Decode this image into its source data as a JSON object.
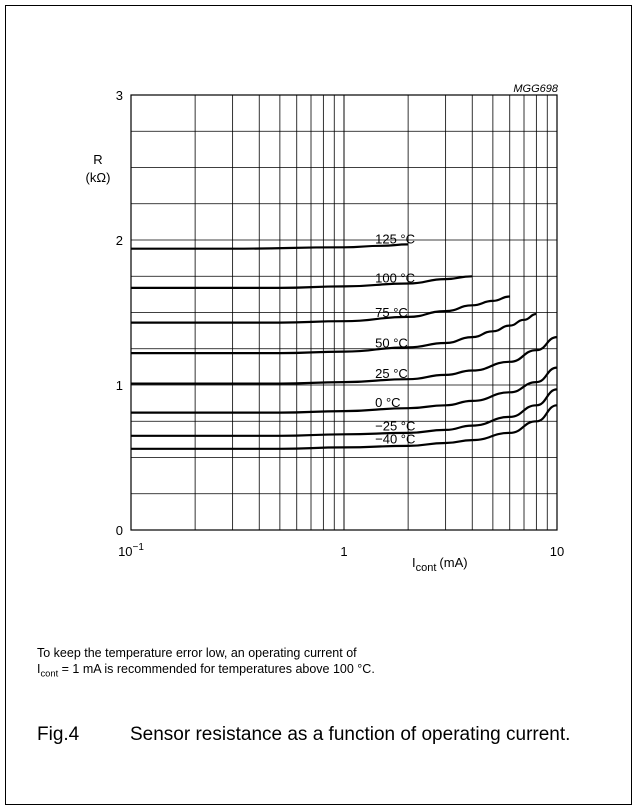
{
  "chart_data": {
    "type": "line",
    "code": "MGG698",
    "x_scale": "log",
    "xlim": [
      0.1,
      10
    ],
    "ylim": [
      0,
      3
    ],
    "x_ticks": [
      {
        "value": 0.1,
        "label": "10−1"
      },
      {
        "value": 1,
        "label": "1"
      },
      {
        "value": 10,
        "label": "10"
      }
    ],
    "y_ticks": [
      {
        "value": 0,
        "label": "0"
      },
      {
        "value": 1,
        "label": "1"
      },
      {
        "value": 2,
        "label": "2"
      },
      {
        "value": 3,
        "label": "3"
      }
    ],
    "ylabel": {
      "symbol": "R",
      "unit": "(kΩ)"
    },
    "xlabel": {
      "symbol": "I",
      "sub": "cont",
      "unit": "(mA)"
    },
    "grid": true,
    "series": [
      {
        "name": "125 °C",
        "x": [
          0.1,
          0.3,
          1,
          1.5,
          2
        ],
        "y": [
          1.94,
          1.94,
          1.95,
          1.96,
          1.97
        ]
      },
      {
        "name": "100 °C",
        "x": [
          0.1,
          0.5,
          1,
          2,
          3,
          4
        ],
        "y": [
          1.67,
          1.67,
          1.68,
          1.7,
          1.73,
          1.75
        ]
      },
      {
        "name": "75 °C",
        "x": [
          0.1,
          0.5,
          1,
          2,
          3,
          4,
          5,
          6
        ],
        "y": [
          1.43,
          1.43,
          1.44,
          1.47,
          1.51,
          1.55,
          1.58,
          1.61
        ]
      },
      {
        "name": "50 °C",
        "x": [
          0.1,
          0.5,
          1,
          2,
          3,
          4,
          5,
          6,
          7,
          8
        ],
        "y": [
          1.22,
          1.22,
          1.23,
          1.26,
          1.29,
          1.33,
          1.37,
          1.41,
          1.45,
          1.49
        ]
      },
      {
        "name": "25 °C",
        "x": [
          0.1,
          0.5,
          1,
          2,
          3,
          4,
          6,
          8,
          10
        ],
        "y": [
          1.01,
          1.01,
          1.02,
          1.04,
          1.07,
          1.1,
          1.16,
          1.24,
          1.33
        ]
      },
      {
        "name": "0 °C",
        "x": [
          0.1,
          0.5,
          1,
          2,
          3,
          4,
          6,
          8,
          10
        ],
        "y": [
          0.81,
          0.81,
          0.82,
          0.84,
          0.86,
          0.89,
          0.95,
          1.02,
          1.12
        ]
      },
      {
        "name": "−25 °C",
        "x": [
          0.1,
          0.5,
          1,
          2,
          3,
          4,
          6,
          8,
          10
        ],
        "y": [
          0.65,
          0.65,
          0.66,
          0.67,
          0.69,
          0.72,
          0.78,
          0.86,
          0.97
        ]
      },
      {
        "name": "−40 °C",
        "x": [
          0.1,
          0.5,
          1,
          2,
          3,
          4,
          6,
          8,
          10
        ],
        "y": [
          0.56,
          0.56,
          0.57,
          0.58,
          0.6,
          0.62,
          0.67,
          0.75,
          0.86
        ]
      }
    ]
  },
  "note": {
    "before": "To keep the temperature error low, an operating current of",
    "symbol": "I",
    "sub": "cont",
    "after": " = 1 mA is recommended for temperatures above 100 °C."
  },
  "figure": {
    "number": "Fig.4",
    "title": "Sensor resistance as a function of operating current."
  }
}
